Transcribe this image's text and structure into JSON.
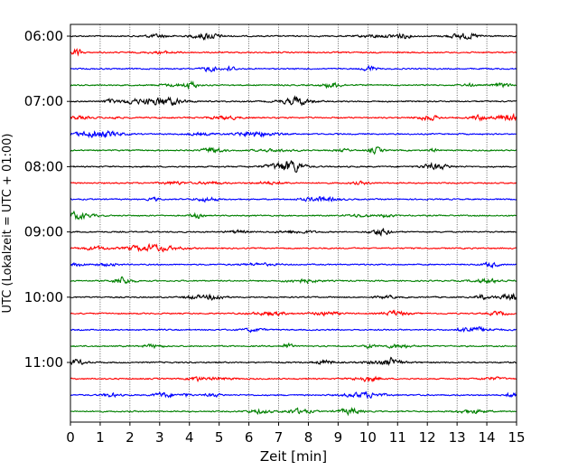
{
  "chart_data": {
    "type": "line",
    "title": "",
    "xlabel": "Zeit  [min]",
    "ylabel": "UTC (Lokalzeit = UTC + 01:00)",
    "xlim": [
      0,
      15
    ],
    "x_ticks": [
      "0",
      "1",
      "2",
      "3",
      "4",
      "5",
      "6",
      "7",
      "8",
      "9",
      "10",
      "11",
      "12",
      "13",
      "14",
      "15"
    ],
    "y_ticks": [
      "06:00",
      "07:00",
      "08:00",
      "09:00",
      "10:00",
      "11:00"
    ],
    "grid": "vertical dotted at each minute",
    "trace_interval_min": 15,
    "trace_count": 24,
    "trace_start_times": [
      "06:00",
      "06:15",
      "06:30",
      "06:45",
      "07:00",
      "07:15",
      "07:30",
      "07:45",
      "08:00",
      "08:15",
      "08:30",
      "08:45",
      "09:00",
      "09:15",
      "09:30",
      "09:45",
      "10:00",
      "10:15",
      "10:30",
      "10:45",
      "11:00",
      "11:15",
      "11:30",
      "11:45"
    ],
    "trace_colors": [
      "#000000",
      "#ff0000",
      "#0000ff",
      "#008000"
    ]
  }
}
